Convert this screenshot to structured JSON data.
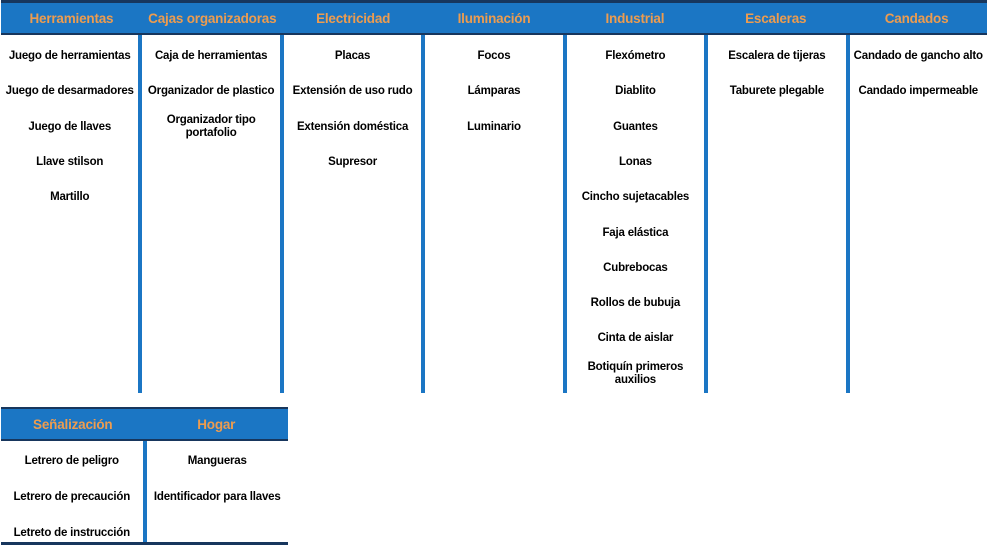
{
  "colors": {
    "header_bg": "#1b76c4",
    "header_text": "#ed9c4f",
    "dark_line": "#17365d",
    "item_text": "#000000"
  },
  "sections": [
    {
      "columns": [
        {
          "header": "Herramientas",
          "items": [
            "Juego de herramientas",
            "Juego de desarmadores",
            "Juego de llaves",
            "Llave stilson",
            "Martillo"
          ]
        },
        {
          "header": "Cajas organizadoras",
          "items": [
            "Caja de herramientas",
            "Organizador de plastico",
            "Organizador tipo portafolio"
          ]
        },
        {
          "header": "Electricidad",
          "items": [
            "Placas",
            "Extensión de uso rudo",
            "Extensión doméstica",
            "Supresor"
          ]
        },
        {
          "header": "Iluminación",
          "items": [
            "Focos",
            "Lámparas",
            "Luminario"
          ]
        },
        {
          "header": "Industrial",
          "items": [
            "Flexómetro",
            "Diablito",
            "Guantes",
            "Lonas",
            "Cincho sujetacables",
            "Faja elástica",
            "Cubrebocas",
            "Rollos de bubuja",
            "Cinta de aislar",
            "Botiquín primeros auxilios"
          ]
        },
        {
          "header": "Escaleras",
          "items": [
            "Escalera de tijeras",
            "Taburete plegable"
          ]
        },
        {
          "header": "Candados",
          "items": [
            "Candado de gancho alto",
            "Candado impermeable"
          ]
        }
      ]
    },
    {
      "columns": [
        {
          "header": "Señalización",
          "items": [
            "Letrero de peligro",
            "Letrero de precaución",
            "Letreto de instrucción"
          ]
        },
        {
          "header": "Hogar",
          "items": [
            "Mangueras",
            "Identificador para llaves"
          ]
        }
      ]
    }
  ]
}
